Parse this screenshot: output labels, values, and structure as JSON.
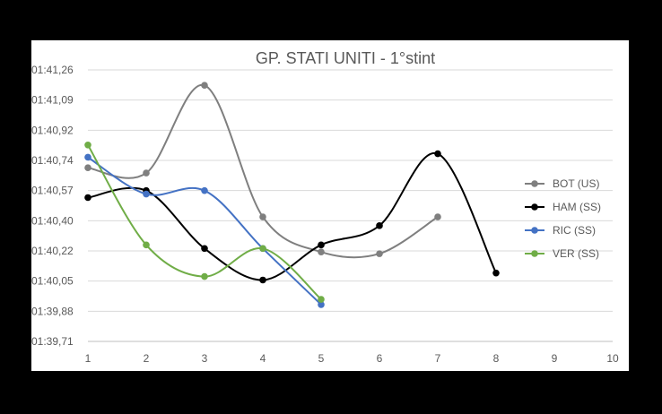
{
  "chart_data": {
    "type": "line",
    "title": "GP. STATI UNITI - 1°stint",
    "xlabel": "",
    "ylabel": "",
    "x_ticks": [
      1,
      2,
      3,
      4,
      5,
      6,
      7,
      8,
      9,
      10
    ],
    "xlim": [
      1,
      10
    ],
    "y_ticks": [
      "01:39,71",
      "01:39,88",
      "01:40,05",
      "01:40,22",
      "01:40,40",
      "01:40,57",
      "01:40,74",
      "01:40,92",
      "01:41,09",
      "01:41,26"
    ],
    "ylim": [
      99.71,
      101.26
    ],
    "ytick_step": 0.172,
    "smooth": true,
    "grid": "horizontal",
    "legend_position": "right",
    "series": [
      {
        "name": "BOT (US)",
        "color": "#7f7f7f",
        "x": [
          1,
          2,
          3,
          4,
          5,
          6,
          7
        ],
        "y": [
          100.7,
          100.67,
          101.17,
          100.42,
          100.22,
          100.21,
          100.42
        ]
      },
      {
        "name": "HAM (SS)",
        "color": "#000000",
        "x": [
          1,
          2,
          3,
          4,
          5,
          6,
          7,
          8
        ],
        "y": [
          100.53,
          100.57,
          100.24,
          100.06,
          100.26,
          100.37,
          100.78,
          100.1
        ]
      },
      {
        "name": "RIC (SS)",
        "color": "#4472c4",
        "x": [
          1,
          2,
          3,
          4,
          5
        ],
        "y": [
          100.76,
          100.55,
          100.57,
          100.24,
          99.92
        ]
      },
      {
        "name": "VER (SS)",
        "color": "#70ad47",
        "x": [
          1,
          2,
          3,
          4,
          5
        ],
        "y": [
          100.83,
          100.26,
          100.08,
          100.24,
          99.95
        ]
      }
    ]
  }
}
